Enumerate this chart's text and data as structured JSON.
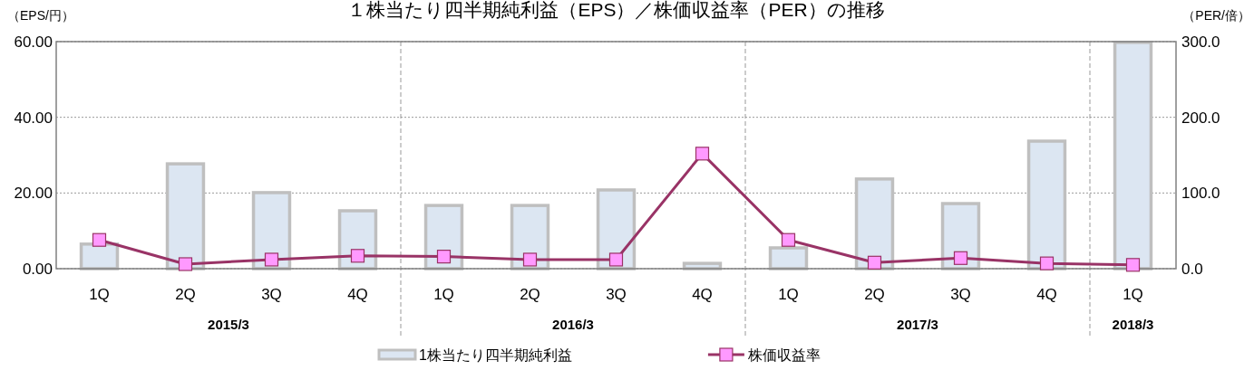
{
  "chart_data": {
    "type": "bar",
    "title": "１株当たり四半期純利益（EPS）／株価収益率（PER）の推移",
    "ylabel": "（EPS/円）",
    "y2label": "（PER/倍）",
    "categories": [
      "1Q",
      "2Q",
      "3Q",
      "4Q",
      "1Q",
      "2Q",
      "3Q",
      "4Q",
      "1Q",
      "2Q",
      "3Q",
      "4Q",
      "1Q"
    ],
    "annotations": [
      "2015/3",
      "2016/3",
      "2017/3",
      "2018/3"
    ],
    "series": [
      {
        "name": "1株当たり四半期純利益",
        "color": "#dce6f2",
        "values": [
          6.5,
          27.7,
          20.1,
          15.3,
          16.7,
          16.7,
          20.8,
          1.4,
          5.5,
          23.7,
          17.2,
          33.7,
          59.8
        ]
      },
      {
        "name": "株価収益率",
        "type": "line",
        "axis": "y2",
        "color": "#993366",
        "marker": "square",
        "values": [
          38,
          6,
          12,
          17,
          16,
          12,
          12,
          152,
          38,
          8,
          14,
          7,
          5
        ]
      }
    ],
    "ylim": [
      0,
      60
    ],
    "yticks": [
      {
        "value": 0,
        "label": "0.00"
      },
      {
        "value": 20,
        "label": "20.00"
      },
      {
        "value": 40,
        "label": "40.00"
      },
      {
        "value": 60,
        "label": "60.00"
      }
    ],
    "y2lim": [
      0,
      300
    ],
    "y2ticks": [
      {
        "value": 0,
        "label": "0.0"
      },
      {
        "value": 100,
        "label": "100.0"
      },
      {
        "value": 200,
        "label": "200.0"
      },
      {
        "value": 300,
        "label": "300.0"
      }
    ],
    "grid": "y",
    "legend": "bottom"
  }
}
